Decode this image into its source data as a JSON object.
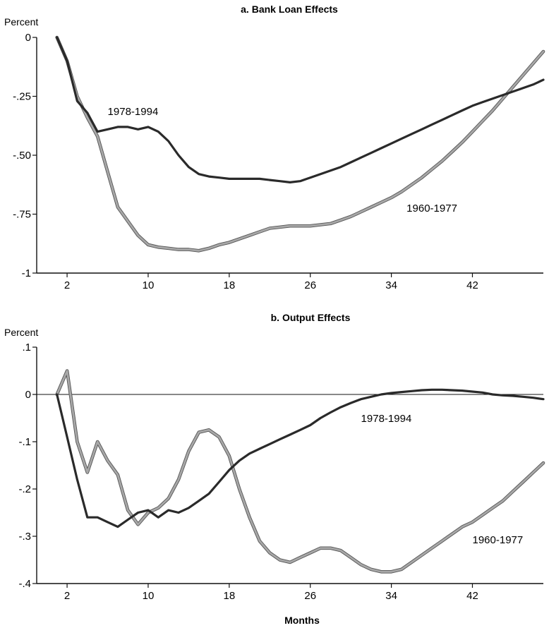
{
  "xlabel": "Months",
  "colors": {
    "s1978": "#2a2a2a",
    "s1960": "#a8a8a8",
    "s1960_edge": "#555555",
    "axis": "#111111"
  },
  "chart_data": [
    {
      "type": "line",
      "title": "a. Bank Loan Effects",
      "ylabel": "Percent",
      "xlabel": "",
      "xlim": [
        -1,
        49
      ],
      "ylim": [
        -1,
        0
      ],
      "xticks": [
        2,
        10,
        18,
        26,
        34,
        42
      ],
      "xtick_labels": [
        "2",
        "10",
        "18",
        "26",
        "34",
        "42"
      ],
      "yticks": [
        0,
        -0.25,
        -0.5,
        -0.75,
        -1
      ],
      "ytick_labels": [
        "0",
        "-.25",
        "-.50",
        "-.75",
        "-1"
      ],
      "zero_line": false,
      "grid": false,
      "series": [
        {
          "name": "1978-1994",
          "color_key": "s1978",
          "x": [
            1,
            2,
            3,
            4,
            5,
            6,
            7,
            8,
            9,
            10,
            11,
            12,
            13,
            14,
            15,
            16,
            17,
            18,
            19,
            20,
            21,
            22,
            23,
            24,
            25,
            26,
            27,
            28,
            29,
            30,
            31,
            32,
            33,
            34,
            35,
            36,
            37,
            38,
            39,
            40,
            41,
            42,
            43,
            44,
            45,
            46,
            47,
            48,
            49
          ],
          "values": [
            0,
            -0.1,
            -0.27,
            -0.32,
            -0.4,
            -0.39,
            -0.38,
            -0.38,
            -0.39,
            -0.38,
            -0.4,
            -0.44,
            -0.5,
            -0.55,
            -0.58,
            -0.59,
            -0.595,
            -0.6,
            -0.6,
            -0.6,
            -0.6,
            -0.605,
            -0.61,
            -0.615,
            -0.61,
            -0.595,
            -0.58,
            -0.565,
            -0.55,
            -0.53,
            -0.51,
            -0.49,
            -0.47,
            -0.45,
            -0.43,
            -0.41,
            -0.39,
            -0.37,
            -0.35,
            -0.33,
            -0.31,
            -0.29,
            -0.275,
            -0.26,
            -0.245,
            -0.23,
            -0.215,
            -0.2,
            -0.18
          ]
        },
        {
          "name": "1960-1977",
          "color_key": "s1960",
          "x": [
            1,
            2,
            3,
            4,
            5,
            6,
            7,
            8,
            9,
            10,
            11,
            12,
            13,
            14,
            15,
            16,
            17,
            18,
            19,
            20,
            21,
            22,
            23,
            24,
            25,
            26,
            27,
            28,
            29,
            30,
            31,
            32,
            33,
            34,
            35,
            36,
            37,
            38,
            39,
            40,
            41,
            42,
            43,
            44,
            45,
            46,
            47,
            48,
            49
          ],
          "values": [
            0,
            -0.1,
            -0.25,
            -0.34,
            -0.42,
            -0.57,
            -0.72,
            -0.78,
            -0.84,
            -0.88,
            -0.89,
            -0.895,
            -0.9,
            -0.9,
            -0.905,
            -0.895,
            -0.88,
            -0.87,
            -0.855,
            -0.84,
            -0.825,
            -0.81,
            -0.805,
            -0.8,
            -0.8,
            -0.8,
            -0.795,
            -0.79,
            -0.775,
            -0.76,
            -0.74,
            -0.72,
            -0.7,
            -0.68,
            -0.655,
            -0.625,
            -0.595,
            -0.56,
            -0.525,
            -0.485,
            -0.445,
            -0.4,
            -0.355,
            -0.31,
            -0.26,
            -0.21,
            -0.16,
            -0.11,
            -0.06
          ]
        }
      ],
      "annotations": [
        {
          "text": "1978-1994",
          "x": 8.5,
          "y": -0.33
        },
        {
          "text": "1960-1977",
          "x": 38,
          "y": -0.74
        }
      ]
    },
    {
      "type": "line",
      "title": "b. Output Effects",
      "ylabel": "Percent",
      "xlabel": "Months",
      "xlim": [
        -1,
        49
      ],
      "ylim": [
        -0.4,
        0.1
      ],
      "xticks": [
        2,
        10,
        18,
        26,
        34,
        42
      ],
      "xtick_labels": [
        "2",
        "10",
        "18",
        "26",
        "34",
        "42"
      ],
      "yticks": [
        0.1,
        0,
        -0.1,
        -0.2,
        -0.3,
        -0.4
      ],
      "ytick_labels": [
        ".1",
        "0",
        "-.1",
        "-.2",
        "-.3",
        "-.4"
      ],
      "zero_line": true,
      "grid": false,
      "series": [
        {
          "name": "1978-1994",
          "color_key": "s1978",
          "x": [
            1,
            2,
            3,
            4,
            5,
            6,
            7,
            8,
            9,
            10,
            11,
            12,
            13,
            14,
            15,
            16,
            17,
            18,
            19,
            20,
            21,
            22,
            23,
            24,
            25,
            26,
            27,
            28,
            29,
            30,
            31,
            32,
            33,
            34,
            35,
            36,
            37,
            38,
            39,
            40,
            41,
            42,
            43,
            44,
            45,
            46,
            47,
            48,
            49
          ],
          "values": [
            0,
            -0.09,
            -0.18,
            -0.26,
            -0.26,
            -0.27,
            -0.28,
            -0.265,
            -0.25,
            -0.245,
            -0.26,
            -0.245,
            -0.25,
            -0.24,
            -0.225,
            -0.21,
            -0.185,
            -0.16,
            -0.14,
            -0.125,
            -0.115,
            -0.105,
            -0.095,
            -0.085,
            -0.075,
            -0.065,
            -0.05,
            -0.038,
            -0.027,
            -0.018,
            -0.01,
            -0.005,
            0,
            0.003,
            0.005,
            0.007,
            0.009,
            0.01,
            0.01,
            0.009,
            0.008,
            0.006,
            0.004,
            0,
            -0.002,
            -0.003,
            -0.005,
            -0.007,
            -0.01
          ]
        },
        {
          "name": "1960-1977",
          "color_key": "s1960",
          "x": [
            1,
            2,
            3,
            4,
            5,
            6,
            7,
            8,
            9,
            10,
            11,
            12,
            13,
            14,
            15,
            16,
            17,
            18,
            19,
            20,
            21,
            22,
            23,
            24,
            25,
            26,
            27,
            28,
            29,
            30,
            31,
            32,
            33,
            34,
            35,
            36,
            37,
            38,
            39,
            40,
            41,
            42,
            43,
            44,
            45,
            46,
            47,
            48,
            49
          ],
          "values": [
            0,
            0.05,
            -0.1,
            -0.165,
            -0.1,
            -0.14,
            -0.17,
            -0.245,
            -0.275,
            -0.25,
            -0.24,
            -0.22,
            -0.18,
            -0.12,
            -0.08,
            -0.075,
            -0.09,
            -0.13,
            -0.2,
            -0.26,
            -0.31,
            -0.335,
            -0.35,
            -0.355,
            -0.345,
            -0.335,
            -0.325,
            -0.325,
            -0.33,
            -0.345,
            -0.36,
            -0.37,
            -0.375,
            -0.375,
            -0.37,
            -0.355,
            -0.34,
            -0.325,
            -0.31,
            -0.295,
            -0.28,
            -0.27,
            -0.255,
            -0.24,
            -0.225,
            -0.205,
            -0.185,
            -0.165,
            -0.145
          ]
        }
      ],
      "annotations": [
        {
          "text": "1978-1994",
          "x": 33.5,
          "y": -0.058
        },
        {
          "text": "1960-1977",
          "x": 44.5,
          "y": -0.315
        }
      ]
    }
  ]
}
